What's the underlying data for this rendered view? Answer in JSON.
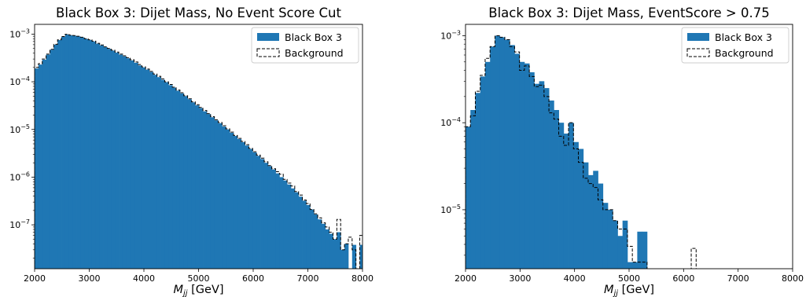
{
  "chart_data": [
    {
      "type": "histogram",
      "title": "Black Box 3: Dijet Mass, No Event Score Cut",
      "xlabel": "M_jj [GeV]",
      "xlabel_main": "M",
      "xlabel_sub": "jj",
      "xlabel_unit": " [GeV]",
      "xlim": [
        2000,
        8000
      ],
      "ylim": [
        1.2e-08,
        0.0016
      ],
      "yscale": "log",
      "xticks": [
        "2000",
        "3000",
        "4000",
        "5000",
        "6000",
        "7000",
        "8000"
      ],
      "yticks": [
        {
          "base": "10",
          "exp": "−7",
          "value": 1e-07
        },
        {
          "base": "10",
          "exp": "−6",
          "value": 1e-06
        },
        {
          "base": "10",
          "exp": "−5",
          "value": 1e-05
        },
        {
          "base": "10",
          "exp": "−4",
          "value": 0.0001
        },
        {
          "base": "10",
          "exp": "−3",
          "value": 0.001
        }
      ],
      "legend_position": "top-right",
      "bin_edges_start": 2000,
      "bin_width": 70,
      "series": [
        {
          "name": "Black Box 3",
          "style": "filled",
          "color": "#1f77b4",
          "values": [
            0.00019,
            0.00023,
            0.00029,
            0.00037,
            0.00047,
            0.0006,
            0.00075,
            0.00088,
            0.00098,
            0.00094,
            0.00092,
            0.00089,
            0.00085,
            0.00079,
            0.00075,
            0.0007,
            0.00063,
            0.00058,
            0.00053,
            0.00049,
            0.00045,
            0.00041,
            0.00037,
            0.00034,
            0.00031,
            0.00028,
            0.00025,
            0.00022,
            0.0002,
            0.00018,
            0.00016,
            0.00014,
            0.000125,
            0.00011,
            9.8e-05,
            8.5e-05,
            7.5e-05,
            6.5e-05,
            5.7e-05,
            5e-05,
            4.3e-05,
            3.7e-05,
            3.2e-05,
            2.8e-05,
            2.4e-05,
            2.1e-05,
            1.8e-05,
            1.55e-05,
            1.35e-05,
            1.15e-05,
            1e-05,
            8.5e-06,
            7.3e-06,
            6.3e-06,
            5.4e-06,
            4.6e-06,
            3.9e-06,
            3.3e-06,
            2.8e-06,
            2.4e-06,
            2e-06,
            1.7e-06,
            1.45e-06,
            1.2e-06,
            1e-06,
            8.5e-07,
            7e-07,
            5.8e-07,
            4.8e-07,
            3.9e-07,
            3.2e-07,
            2.6e-07,
            2.1e-07,
            1.65e-07,
            1.3e-07,
            1.05e-07,
            8e-08,
            6.5e-08,
            5e-08,
            7e-08,
            3e-08,
            4e-08,
            1e-08,
            3.8e-08,
            1e-08,
            3.8e-08,
            1e-08
          ]
        },
        {
          "name": "Background",
          "style": "step-dashed",
          "color": "#000000",
          "values": [
            0.0002,
            0.00024,
            0.0003,
            0.00038,
            0.00048,
            0.00061,
            0.00076,
            0.00089,
            0.00099,
            0.00095,
            0.00093,
            0.0009,
            0.00086,
            0.0008,
            0.00076,
            0.00071,
            0.00064,
            0.00059,
            0.00054,
            0.0005,
            0.00046,
            0.00042,
            0.00038,
            0.00035,
            0.00032,
            0.00029,
            0.00026,
            0.00023,
            0.000205,
            0.000185,
            0.000165,
            0.000145,
            0.00013,
            0.000115,
            0.0001,
            8.8e-05,
            7.7e-05,
            6.7e-05,
            5.9e-05,
            5.1e-05,
            4.4e-05,
            3.8e-05,
            3.3e-05,
            2.9e-05,
            2.5e-05,
            2.15e-05,
            1.85e-05,
            1.6e-05,
            1.4e-05,
            1.2e-05,
            1.03e-05,
            8.8e-06,
            7.5e-06,
            6.5e-06,
            5.6e-06,
            4.8e-06,
            4e-06,
            3.4e-06,
            2.9e-06,
            2.5e-06,
            2.1e-06,
            1.75e-06,
            1.5e-06,
            1.3e-06,
            1.15e-06,
            9e-07,
            7.5e-07,
            6.5e-07,
            5e-07,
            4.2e-07,
            3.3e-07,
            2.8e-07,
            2.1e-07,
            1.7e-07,
            1.4e-07,
            1.1e-07,
            9e-08,
            7e-08,
            5e-08,
            1.3e-07,
            3e-08,
            4e-08,
            5.5e-08,
            3e-08,
            1.2e-08,
            6e-08,
            2e-08
          ]
        }
      ]
    },
    {
      "type": "histogram",
      "title": "Black Box 3: Dijet Mass, EventScore > 0.75",
      "xlabel": "M_jj [GeV]",
      "xlabel_main": "M",
      "xlabel_sub": "jj",
      "xlabel_unit": " [GeV]",
      "xlim": [
        2000,
        8000
      ],
      "ylim": [
        2.1e-06,
        0.00135
      ],
      "yscale": "log",
      "xticks": [
        "2000",
        "3000",
        "4000",
        "5000",
        "6000",
        "7000",
        "8000"
      ],
      "yticks": [
        {
          "base": "10",
          "exp": "−5",
          "value": 1e-05
        },
        {
          "base": "10",
          "exp": "−4",
          "value": 0.0001
        },
        {
          "base": "10",
          "exp": "−3",
          "value": 0.001
        }
      ],
      "legend_position": "top-right",
      "bin_edges_start": 2000,
      "bin_width": 90,
      "series": [
        {
          "name": "Black Box 3",
          "style": "filled",
          "color": "#1f77b4",
          "values": [
            9e-05,
            0.00014,
            0.00022,
            0.00034,
            0.0005,
            0.00075,
            0.001,
            0.00096,
            0.0009,
            0.00078,
            0.00062,
            0.0005,
            0.00048,
            0.00038,
            0.00028,
            0.0003,
            0.00025,
            0.00018,
            0.00014,
            0.0001,
            7.5e-05,
            0.0001,
            6e-05,
            5e-05,
            3.5e-05,
            2.5e-05,
            2.8e-05,
            2e-05,
            1.2e-05,
            1e-05,
            7.5e-06,
            5e-06,
            7.5e-06,
            2.5e-06,
            2.5e-06,
            5.6e-06,
            5.6e-06
          ]
        },
        {
          "name": "Background",
          "style": "step-dashed",
          "color": "#000000",
          "values": [
            9e-05,
            0.00012,
            0.00023,
            0.00035,
            0.00055,
            0.00075,
            0.001,
            0.00096,
            0.0009,
            0.00075,
            0.00065,
            0.0004,
            0.00045,
            0.00034,
            0.00026,
            0.00027,
            0.0002,
            0.00013,
            0.00011,
            7e-05,
            5.5e-05,
            0.0001,
            5e-05,
            3.5e-05,
            2.3e-05,
            2e-05,
            1.8e-05,
            1.3e-05,
            1e-05,
            1e-05,
            7.5e-06,
            6e-06,
            6e-06,
            3.8e-06,
            2.5e-06,
            2.5e-06,
            2.5e-06,
            0,
            0,
            0,
            0,
            0,
            0,
            0,
            0,
            0,
            3.6e-06,
            0
          ]
        }
      ]
    }
  ]
}
